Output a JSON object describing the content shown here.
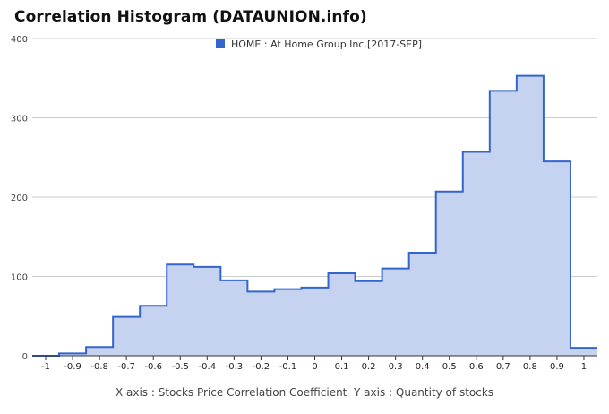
{
  "header": {
    "title": "Correlation Histogram (DATAUNION.info)"
  },
  "caption": {
    "x_axis": "X axis : Stocks Price Correlation Coefficient",
    "y_axis": "Y axis : Quantity of stocks"
  },
  "chart_data": {
    "type": "area",
    "title": "Correlation Histogram (DATAUNION.info)",
    "xlabel": "X axis : Stocks Price Correlation Coefficient",
    "ylabel": "Y axis : Quantity of stocks",
    "xlim": [
      -1.05,
      1.05
    ],
    "ylim": [
      0,
      400
    ],
    "x_ticks": [
      -1,
      -0.9,
      -0.8,
      -0.7,
      -0.6,
      -0.5,
      -0.4,
      -0.3,
      -0.2,
      -0.1,
      0,
      0.1,
      0.2,
      0.3,
      0.4,
      0.5,
      0.6,
      0.7,
      0.8,
      0.9,
      1
    ],
    "y_ticks": [
      0,
      100,
      200,
      300,
      400
    ],
    "grid": true,
    "legend_position": "top-center",
    "series": [
      {
        "name": "HOME : At Home Group Inc.[2017-SEP]",
        "color": "#3366cc",
        "fill": "#c5d2f0",
        "x": [
          -1,
          -0.9,
          -0.8,
          -0.7,
          -0.6,
          -0.5,
          -0.4,
          -0.3,
          -0.2,
          -0.1,
          0,
          0.1,
          0.2,
          0.3,
          0.4,
          0.5,
          0.6,
          0.7,
          0.8,
          0.9,
          1
        ],
        "values": [
          0,
          3,
          11,
          49,
          63,
          115,
          112,
          95,
          81,
          84,
          86,
          104,
          94,
          110,
          130,
          207,
          257,
          334,
          353,
          245,
          10
        ]
      }
    ]
  }
}
